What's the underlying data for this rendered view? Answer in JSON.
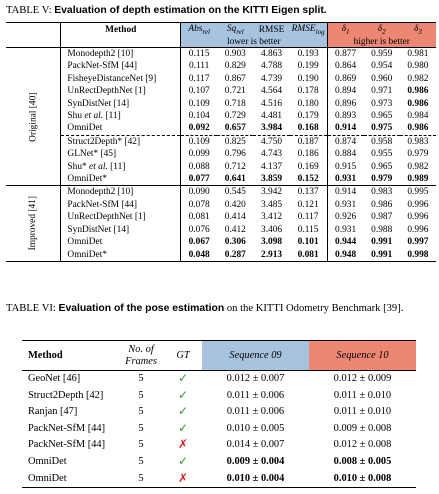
{
  "table5": {
    "caption_prefix": "TABLE V: ",
    "caption_bold": "Evaluation of depth estimation on the KITTI Eigen split.",
    "method_header": "Method",
    "cols": [
      "Abs_rel",
      "Sq_rel",
      "RMSE",
      "RMSE_log",
      "δ1",
      "δ2",
      "δ3"
    ],
    "cols_display": [
      "Absrel",
      "Sqrel",
      "RMSE",
      "RMSElog",
      "δ1",
      "δ2",
      "δ3"
    ],
    "lower_label": "lower is better",
    "higher_label": "higher is better",
    "group_original": "Original [40]",
    "group_improved": "Improved [41]",
    "block1": [
      {
        "m": "Monodepth2 [10]",
        "v": [
          "0.115",
          "0.903",
          "4.863",
          "0.193",
          "0.877",
          "0.959",
          "0.981"
        ],
        "b": []
      },
      {
        "m": "PackNet-SfM [44]",
        "v": [
          "0.111",
          "0.829",
          "4.788",
          "0.199",
          "0.864",
          "0.954",
          "0.980"
        ],
        "b": []
      },
      {
        "m": "FisheyeDistanceNet [9]",
        "v": [
          "0.117",
          "0.867",
          "4.739",
          "0.190",
          "0.869",
          "0.960",
          "0.982"
        ],
        "b": []
      },
      {
        "m": "UnRectDepthNet [1]",
        "v": [
          "0.107",
          "0.721",
          "4.564",
          "0.178",
          "0.894",
          "0.971",
          "0.986"
        ],
        "b": [
          6
        ]
      },
      {
        "m": "SynDistNet [14]",
        "v": [
          "0.109",
          "0.718",
          "4.516",
          "0.180",
          "0.896",
          "0.973",
          "0.986"
        ],
        "b": [
          6
        ]
      },
      {
        "m": "Shu et al. [11]",
        "v": [
          "0.104",
          "0.729",
          "4.481",
          "0.179",
          "0.893",
          "0.965",
          "0.984"
        ],
        "b": []
      },
      {
        "m": "OmniDet",
        "v": [
          "0.092",
          "0.657",
          "3.984",
          "0.168",
          "0.914",
          "0.975",
          "0.986"
        ],
        "b": [
          0,
          1,
          2,
          3,
          4,
          5,
          6
        ]
      }
    ],
    "block2": [
      {
        "m": "Struct2Depth* [42]",
        "v": [
          "0.109",
          "0.825",
          "4.750",
          "0.187",
          "0.874",
          "0.958",
          "0.983"
        ],
        "b": []
      },
      {
        "m": "GLNet* [45]",
        "v": [
          "0.099",
          "0.796",
          "4.743",
          "0.186",
          "0.884",
          "0.955",
          "0.979"
        ],
        "b": []
      },
      {
        "m": "Shu* et al. [11]",
        "v": [
          "0.088",
          "0.712",
          "4.137",
          "0.169",
          "0.915",
          "0.965",
          "0.982"
        ],
        "b": []
      },
      {
        "m": "OmniDet*",
        "v": [
          "0.077",
          "0.641",
          "3.859",
          "0.152",
          "0.931",
          "0.979",
          "0.989"
        ],
        "b": [
          0,
          1,
          2,
          3,
          4,
          5,
          6
        ]
      }
    ],
    "block3": [
      {
        "m": "Monodepth2 [10]",
        "v": [
          "0.090",
          "0.545",
          "3.942",
          "0.137",
          "0.914",
          "0.983",
          "0.995"
        ],
        "b": []
      },
      {
        "m": "PackNet-SfM [44]",
        "v": [
          "0.078",
          "0.420",
          "3.485",
          "0.121",
          "0.931",
          "0.986",
          "0.996"
        ],
        "b": []
      },
      {
        "m": "UnRectDepthNet [1]",
        "v": [
          "0.081",
          "0.414",
          "3.412",
          "0.117",
          "0.926",
          "0.987",
          "0.996"
        ],
        "b": []
      },
      {
        "m": "SynDistNet [14]",
        "v": [
          "0.076",
          "0.412",
          "3.406",
          "0.115",
          "0.931",
          "0.988",
          "0.996"
        ],
        "b": []
      },
      {
        "m": "OmniDet",
        "v": [
          "0.067",
          "0.306",
          "3.098",
          "0.101",
          "0.944",
          "0.991",
          "0.997"
        ],
        "b": [
          0,
          1,
          2,
          3,
          4,
          5,
          6
        ]
      },
      {
        "m": "OmniDet*",
        "v": [
          "0.048",
          "0.287",
          "2.913",
          "0.081",
          "0.948",
          "0.991",
          "0.998"
        ],
        "b": [
          0,
          1,
          2,
          3,
          4,
          5,
          6
        ]
      }
    ]
  },
  "table6": {
    "caption_prefix": "TABLE VI: ",
    "caption_bold": "Evaluation of the pose estimation",
    "caption_rest": " on the KITTI Odometry Benchmark [39].",
    "headers": {
      "method": "Method",
      "frames_l1": "No. of",
      "frames_l2": "Frames",
      "gt": "GT",
      "seq9": "Sequence 09",
      "seq10": "Sequence 10"
    },
    "rows": [
      {
        "m": "GeoNet [46]",
        "f": "5",
        "gt": "✓",
        "s9": "0.012 ± 0.007",
        "s10": "0.012 ± 0.009",
        "b9": false,
        "b10": false
      },
      {
        "m": "Struct2Depth [42]",
        "f": "5",
        "gt": "✓",
        "s9": "0.011 ± 0.006",
        "s10": "0.011 ± 0.010",
        "b9": false,
        "b10": false
      },
      {
        "m": "Ranjan [47]",
        "f": "5",
        "gt": "✓",
        "s9": "0.011 ± 0.006",
        "s10": "0.011 ± 0.010",
        "b9": false,
        "b10": false
      },
      {
        "m": "PackNet-SfM [44]",
        "f": "5",
        "gt": "✓",
        "s9": "0.010 ± 0.005",
        "s10": "0.009 ± 0.008",
        "b9": false,
        "b10": false
      },
      {
        "m": "PackNet-SfM [44]",
        "f": "5",
        "gt": "✗",
        "s9": "0.014 ± 0.007",
        "s10": "0.012 ± 0.008",
        "b9": false,
        "b10": false
      },
      {
        "m": "OmniDet",
        "f": "5",
        "gt": "✓",
        "s9": "0.009 ± 0.004",
        "s10": "0.008 ± 0.005",
        "b9": true,
        "b10": true
      },
      {
        "m": "OmniDet",
        "f": "5",
        "gt": "✗",
        "s9": "0.010 ± 0.004",
        "s10": "0.010 ± 0.008",
        "b9": true,
        "b10": true
      }
    ]
  },
  "colors": {
    "blue_header": "#a7c3df",
    "red_header": "#ec8774",
    "check": "#2f9a2f",
    "cross": "#d42020"
  }
}
